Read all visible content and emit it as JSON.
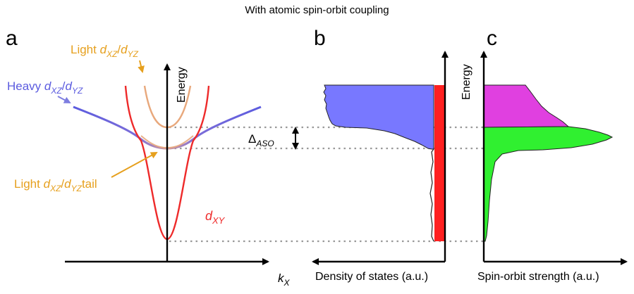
{
  "title": "With atomic spin-orbit coupling",
  "panels": {
    "a": {
      "letter": "a",
      "y_axis": "Energy",
      "x_axis": {
        "main": "k",
        "sub": "X"
      },
      "labels": {
        "light_top": {
          "pre": "Light ",
          "s1": "d",
          "sub1": "XZ",
          "mid": "/",
          "s2": "d",
          "sub2": "YZ"
        },
        "heavy": {
          "pre": "Heavy ",
          "s1": "d",
          "sub1": "XZ",
          "mid": "/",
          "s2": "d",
          "sub2": "YZ"
        },
        "light_tail": {
          "pre": "Light ",
          "s1": "d",
          "sub1": "XZ",
          "mid": "/",
          "s2": "d",
          "sub2": "YZ",
          "post": "tail"
        },
        "dxy": {
          "s1": "d",
          "sub1": "XY"
        },
        "gap": {
          "main": "Δ",
          "sub": "ASO"
        }
      }
    },
    "b": {
      "letter": "b",
      "x_axis": "Density of states (a.u.)"
    },
    "c": {
      "letter": "c",
      "y_axis": "Energy",
      "x_axis": "Spin-orbit strength (a.u.)"
    }
  },
  "colors": {
    "dxy": "#ee2a2a",
    "heavy": "#5b5bdf",
    "light": "#e8a87c",
    "orange_text": "#e6a01e",
    "dos_fill": "#7878ff",
    "dos_bar": "#ff2020",
    "soc_top": "#e040e0",
    "soc_bottom": "#30f030",
    "dotted": "#999999"
  }
}
